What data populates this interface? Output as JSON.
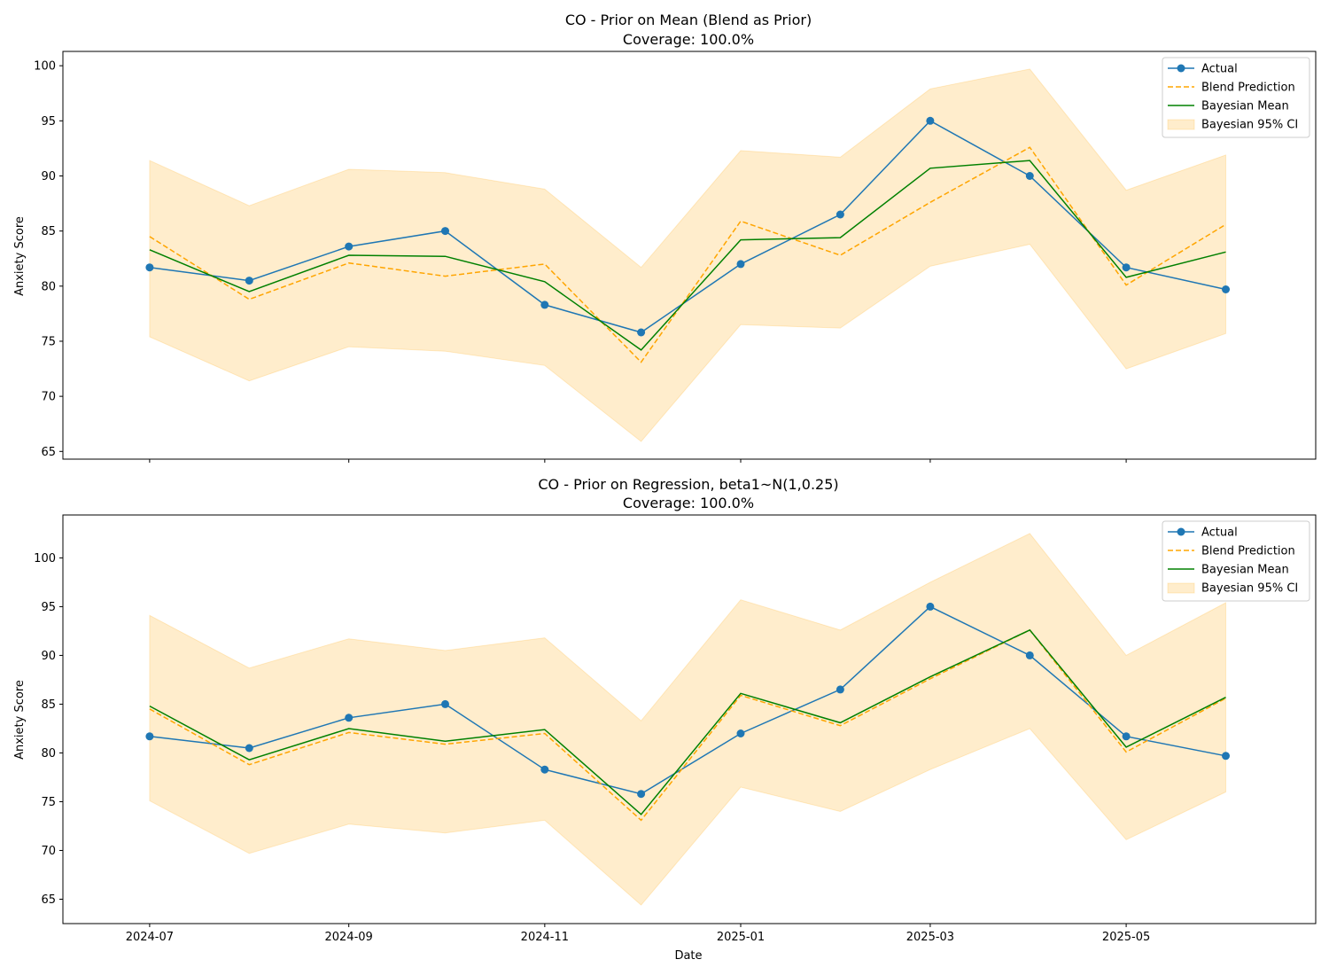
{
  "figure": {
    "xlabel": "Date",
    "x_tick_labels": [
      "2024-07",
      "2024-09",
      "2024-11",
      "2025-01",
      "2025-03",
      "2025-05"
    ]
  },
  "legend": {
    "actual": "Actual",
    "blend": "Blend Prediction",
    "bayes": "Bayesian Mean",
    "ci": "Bayesian 95% CI"
  },
  "colors": {
    "actual": "#1f77b4",
    "blend": "#ffa500",
    "bayes": "#008000",
    "ci": "#ffa500"
  },
  "chart_data": [
    {
      "type": "line",
      "title": "CO - Prior on Mean (Blend as Prior)",
      "subtitle": "Coverage: 100.0%",
      "xlabel": "",
      "ylabel": "Anxiety Score",
      "legend_position": "top-right",
      "grid": false,
      "ylim": [
        64.3,
        101.3
      ],
      "y_ticks": [
        65,
        70,
        75,
        80,
        85,
        90,
        95,
        100
      ],
      "x": [
        "2024-07-01",
        "2024-08-01",
        "2024-09-01",
        "2024-10-01",
        "2024-11-01",
        "2024-12-01",
        "2025-01-01",
        "2025-02-01",
        "2025-03-01",
        "2025-04-01",
        "2025-05-01",
        "2025-06-01"
      ],
      "series": [
        {
          "key": "actual",
          "name": "Actual",
          "values": [
            81.7,
            80.5,
            83.6,
            85.0,
            78.3,
            75.8,
            82.0,
            86.5,
            95.0,
            90.0,
            81.7,
            79.7
          ]
        },
        {
          "key": "blend",
          "name": "Blend Prediction",
          "values": [
            84.5,
            78.8,
            82.1,
            80.9,
            82.0,
            73.1,
            85.9,
            82.8,
            87.6,
            92.6,
            80.1,
            85.6
          ]
        },
        {
          "key": "bayes",
          "name": "Bayesian Mean",
          "values": [
            83.3,
            79.5,
            82.8,
            82.7,
            80.4,
            74.2,
            84.2,
            84.4,
            90.7,
            91.4,
            80.8,
            83.1
          ]
        }
      ],
      "band": {
        "key": "ci",
        "name": "Bayesian 95% CI",
        "lower": [
          75.4,
          71.4,
          74.5,
          74.1,
          72.8,
          65.9,
          76.5,
          76.2,
          81.8,
          83.8,
          72.5,
          75.7
        ],
        "upper": [
          91.4,
          87.3,
          90.6,
          90.3,
          88.8,
          81.7,
          92.3,
          91.7,
          97.9,
          99.7,
          88.7,
          91.9
        ]
      }
    },
    {
      "type": "line",
      "title": "CO - Prior on Regression, beta1~N(1,0.25)",
      "subtitle": "Coverage: 100.0%",
      "xlabel": "Date",
      "ylabel": "Anxiety Score",
      "legend_position": "top-right",
      "grid": false,
      "ylim": [
        62.5,
        104.4
      ],
      "y_ticks": [
        65,
        70,
        75,
        80,
        85,
        90,
        95,
        100
      ],
      "x": [
        "2024-07-01",
        "2024-08-01",
        "2024-09-01",
        "2024-10-01",
        "2024-11-01",
        "2024-12-01",
        "2025-01-01",
        "2025-02-01",
        "2025-03-01",
        "2025-04-01",
        "2025-05-01",
        "2025-06-01"
      ],
      "series": [
        {
          "key": "actual",
          "name": "Actual",
          "values": [
            81.7,
            80.5,
            83.6,
            85.0,
            78.3,
            75.8,
            82.0,
            86.5,
            95.0,
            90.0,
            81.7,
            79.7
          ]
        },
        {
          "key": "blend",
          "name": "Blend Prediction",
          "values": [
            84.5,
            78.8,
            82.1,
            80.9,
            82.0,
            73.1,
            85.9,
            82.8,
            87.6,
            92.6,
            80.1,
            85.6
          ]
        },
        {
          "key": "bayes",
          "name": "Bayesian Mean",
          "values": [
            84.8,
            79.3,
            82.5,
            81.2,
            82.4,
            73.7,
            86.1,
            83.1,
            87.8,
            92.6,
            80.6,
            85.7
          ]
        }
      ],
      "band": {
        "key": "ci",
        "name": "Bayesian 95% CI",
        "lower": [
          75.1,
          69.7,
          72.7,
          71.8,
          73.1,
          64.4,
          76.5,
          74.0,
          78.3,
          82.5,
          71.1,
          76.0
        ],
        "upper": [
          94.1,
          88.7,
          91.7,
          90.5,
          91.8,
          83.3,
          95.7,
          92.6,
          97.5,
          102.5,
          90.0,
          95.4
        ]
      }
    }
  ]
}
